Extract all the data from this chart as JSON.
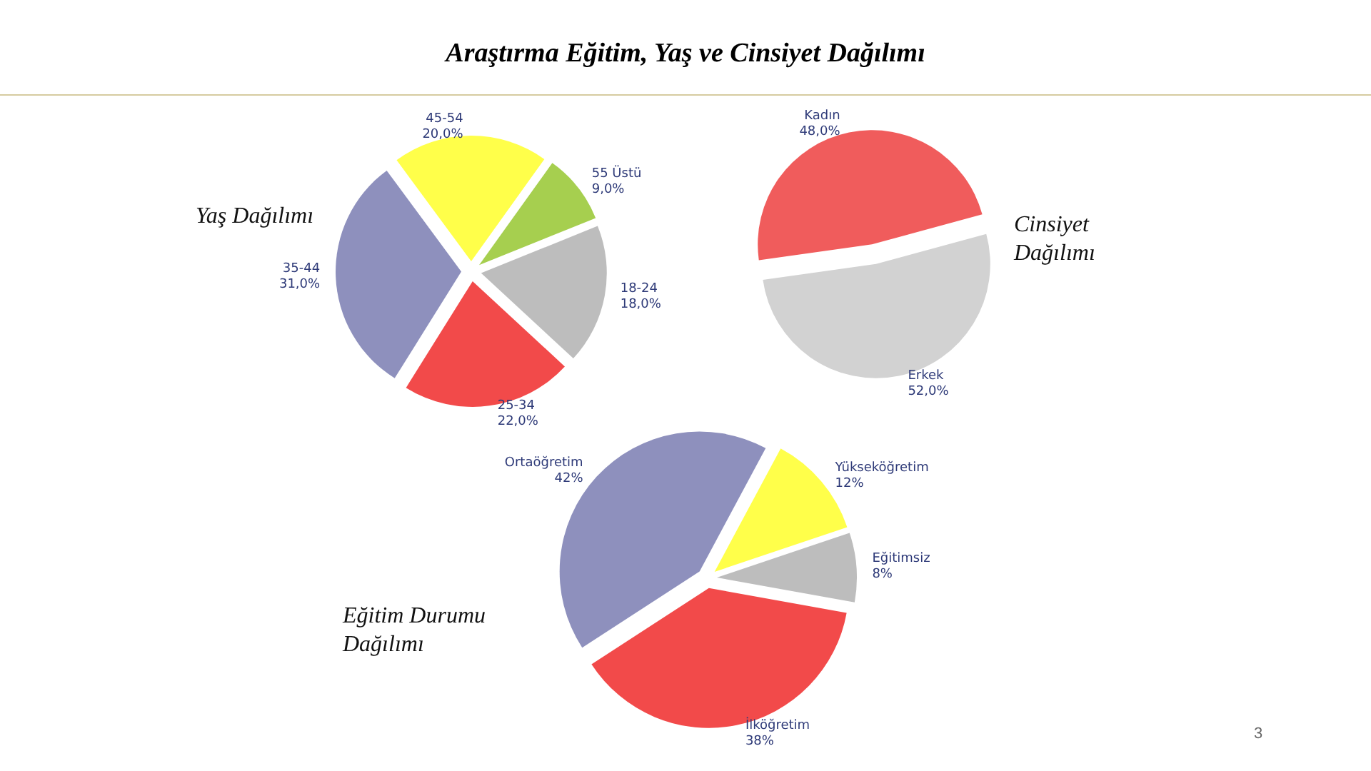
{
  "chart_data": [
    {
      "type": "other",
      "title": "Araştırma Eğitim, Yaş ve Cinsiyet Dağılımı",
      "annotations": [
        "3"
      ]
    },
    {
      "type": "pie",
      "title": "Yaş Dağılımı",
      "categories": [
        "18-24",
        "25-34",
        "35-44",
        "45-54",
        "55 Üstü"
      ],
      "values": [
        18,
        22,
        31,
        20,
        9
      ],
      "colors": [
        "#bdbdbd",
        "#f24a4a",
        "#8e90bd",
        "#ffff4a",
        "#a6cf4f"
      ],
      "value_labels": [
        "18,0%",
        "22,0%",
        "31,0%",
        "20,0%",
        "9,0%"
      ]
    },
    {
      "type": "pie",
      "title": "Cinsiyet Dağılımı",
      "categories": [
        "Kadın",
        "Erkek"
      ],
      "values": [
        48,
        52
      ],
      "colors": [
        "#f05c5c",
        "#d2d2d2"
      ],
      "value_labels": [
        "48,0%",
        "52,0%"
      ]
    },
    {
      "type": "pie",
      "title": "Eğitim Durumu Dağılımı",
      "categories": [
        "Ortaöğretim",
        "Yükseköğretim",
        "Eğitimsiz",
        "İlköğretim"
      ],
      "values": [
        42,
        12,
        8,
        38
      ],
      "colors": [
        "#8e90bd",
        "#ffff4a",
        "#bdbdbd",
        "#f24a4a"
      ],
      "value_labels": [
        "42%",
        "12%",
        "8%",
        "38%"
      ]
    }
  ]
}
